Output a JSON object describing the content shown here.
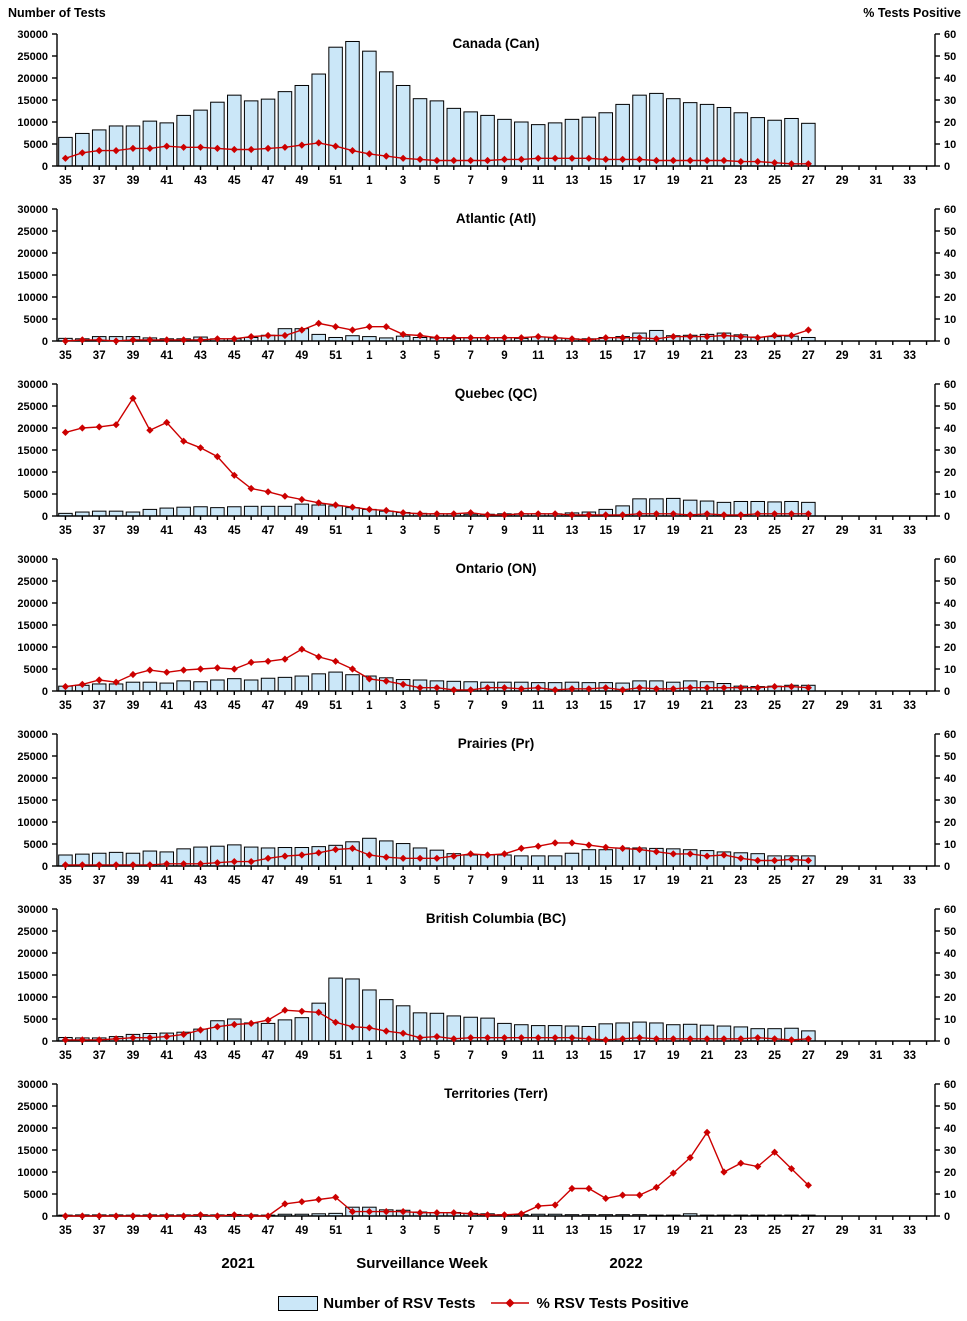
{
  "header": {
    "left_label": "Number of Tests",
    "right_label": "% Tests Positive"
  },
  "footer": {
    "year_left": "2021",
    "axis_title": "Surveillance Week",
    "year_right": "2022"
  },
  "legend": {
    "bars_label": "Number of RSV Tests",
    "line_label": "% RSV Tests Positive"
  },
  "colors": {
    "bar_fill": "#CBE7F8",
    "bar_stroke": "#000000",
    "line": "#CC0000",
    "axis": "#000000"
  },
  "axes": {
    "week_slots": [
      "35",
      "36",
      "37",
      "38",
      "39",
      "40",
      "41",
      "42",
      "43",
      "44",
      "45",
      "46",
      "47",
      "48",
      "49",
      "50",
      "51",
      "52",
      "1",
      "2",
      "3",
      "4",
      "5",
      "6",
      "7",
      "8",
      "9",
      "10",
      "11",
      "12",
      "13",
      "14",
      "15",
      "16",
      "17",
      "18",
      "19",
      "20",
      "21",
      "22",
      "23",
      "24",
      "25",
      "26",
      "27",
      "28",
      "29",
      "30",
      "31",
      "32",
      "33",
      "34"
    ],
    "x_tick_labels": [
      "35",
      "37",
      "39",
      "41",
      "43",
      "45",
      "47",
      "49",
      "51",
      "1",
      "3",
      "5",
      "7",
      "9",
      "11",
      "13",
      "15",
      "17",
      "19",
      "21",
      "23",
      "25",
      "27",
      "29",
      "31",
      "33"
    ],
    "left_ticks": [
      0,
      5000,
      10000,
      15000,
      20000,
      25000,
      30000
    ],
    "right_ticks": [
      0,
      10,
      20,
      30,
      40,
      50,
      60
    ],
    "left_max": 30000,
    "right_max": 60,
    "left_axis_title": "Number of Tests",
    "right_axis_title": "% Tests Positive",
    "x_axis_title": "Surveillance Week"
  },
  "chart_data": [
    {
      "type": "bar+line",
      "title": "Canada (Can)",
      "region_code": "Can",
      "series": [
        {
          "name": "Number of RSV Tests",
          "type": "bar",
          "axis": "left",
          "values": [
            6500,
            7400,
            8200,
            9100,
            9100,
            10200,
            9800,
            11500,
            12700,
            14500,
            16100,
            14800,
            15200,
            16900,
            18300,
            20900,
            27000,
            28300,
            26100,
            21400,
            18300,
            15300,
            14800,
            13100,
            12300,
            11500,
            10600,
            10000,
            9400,
            9800,
            10600,
            11100,
            12100,
            14000,
            16100,
            16500,
            15300,
            14400,
            14000,
            13300,
            12100,
            11000,
            10400,
            10800,
            9700
          ]
        },
        {
          "name": "% RSV Tests Positive",
          "type": "line",
          "axis": "right",
          "values": [
            3.5,
            6,
            7,
            7,
            8,
            8,
            9,
            8.5,
            8.5,
            8,
            7.5,
            7.5,
            8,
            8.5,
            9.5,
            10.5,
            9,
            7,
            5.5,
            4.5,
            3.5,
            3,
            2.5,
            2.5,
            2.5,
            2.5,
            3,
            3,
            3.5,
            3.5,
            3.5,
            3.5,
            3,
            3,
            3,
            2.5,
            2.5,
            2.5,
            2.5,
            2.5,
            2,
            2,
            1.5,
            1,
            1
          ]
        }
      ]
    },
    {
      "type": "bar+line",
      "title": "Atlantic (Atl)",
      "region_code": "Atl",
      "series": [
        {
          "name": "Number of RSV Tests",
          "type": "bar",
          "axis": "left",
          "values": [
            600,
            500,
            1000,
            1000,
            1000,
            700,
            500,
            500,
            900,
            500,
            500,
            800,
            1300,
            2800,
            2800,
            1500,
            800,
            1200,
            1000,
            700,
            1100,
            800,
            700,
            600,
            700,
            700,
            800,
            600,
            900,
            700,
            500,
            500,
            800,
            1000,
            1800,
            2400,
            1200,
            1300,
            1500,
            1800,
            1400,
            900,
            1000,
            1100,
            800
          ]
        },
        {
          "name": "% RSV Tests Positive",
          "type": "line",
          "axis": "right",
          "values": [
            0,
            0.5,
            0.5,
            0,
            0.5,
            0.5,
            0.5,
            0.5,
            0.5,
            1,
            1,
            2,
            2.5,
            2.5,
            5,
            8,
            6.5,
            5,
            6.5,
            6.5,
            3,
            2.5,
            1.5,
            1.5,
            1.5,
            1.5,
            1.5,
            1.5,
            2,
            1.5,
            1,
            0.5,
            1.5,
            1.5,
            1.5,
            1,
            2,
            2,
            2,
            2.5,
            2,
            1.5,
            2.5,
            2.5,
            5
          ]
        }
      ]
    },
    {
      "type": "bar+line",
      "title": "Quebec (QC)",
      "region_code": "QC",
      "series": [
        {
          "name": "Number of RSV Tests",
          "type": "bar",
          "axis": "left",
          "values": [
            600,
            900,
            1100,
            1100,
            900,
            1500,
            1800,
            2000,
            2100,
            1900,
            2100,
            2200,
            2200,
            2200,
            2700,
            2500,
            2300,
            1900,
            1500,
            1100,
            800,
            600,
            500,
            500,
            400,
            400,
            500,
            500,
            500,
            500,
            700,
            900,
            1500,
            2300,
            3900,
            3900,
            4000,
            3600,
            3400,
            3100,
            3300,
            3300,
            3200,
            3300,
            3100
          ]
        },
        {
          "name": "% RSV Tests Positive",
          "type": "line",
          "axis": "right",
          "values": [
            38,
            40,
            40.5,
            41.5,
            53.5,
            39,
            42.5,
            34,
            31,
            27,
            18.5,
            12.5,
            11,
            9,
            7.5,
            6,
            5,
            4,
            3,
            2.5,
            1.5,
            1,
            1,
            1,
            1.5,
            0.5,
            0.5,
            1,
            1,
            1,
            0.5,
            0.5,
            0.5,
            0.5,
            1,
            1,
            1,
            0.5,
            1,
            0.5,
            0.5,
            1,
            1,
            1,
            1
          ]
        }
      ]
    },
    {
      "type": "bar+line",
      "title": "Ontario (ON)",
      "region_code": "ON",
      "series": [
        {
          "name": "Number of RSV Tests",
          "type": "bar",
          "axis": "left",
          "values": [
            1100,
            1300,
            1600,
            1600,
            2000,
            2000,
            1800,
            2300,
            2100,
            2500,
            2800,
            2500,
            2900,
            3100,
            3400,
            3900,
            4300,
            3700,
            3400,
            3000,
            2600,
            2500,
            2300,
            2200,
            2100,
            2000,
            2000,
            2000,
            1900,
            1900,
            2000,
            1900,
            1900,
            1800,
            2300,
            2300,
            2000,
            2300,
            2100,
            1700,
            1100,
            1000,
            1100,
            1300,
            1300
          ]
        },
        {
          "name": "% RSV Tests Positive",
          "type": "line",
          "axis": "right",
          "values": [
            2,
            3,
            5,
            4,
            7.5,
            9.5,
            8.5,
            9.5,
            10,
            10.5,
            10,
            13,
            13.5,
            14.5,
            19,
            15.5,
            13.5,
            10,
            5.5,
            4.5,
            3,
            1.5,
            1.5,
            0.5,
            0.5,
            1.5,
            1.5,
            1,
            1.5,
            0.5,
            1,
            1,
            1.5,
            0.5,
            1.5,
            1,
            1,
            1.5,
            1.5,
            1.5,
            1.5,
            1.5,
            2,
            2,
            1.5
          ]
        }
      ]
    },
    {
      "type": "bar+line",
      "title": "Prairies (Pr)",
      "region_code": "Pr",
      "series": [
        {
          "name": "Number of RSV Tests",
          "type": "bar",
          "axis": "left",
          "values": [
            2500,
            2700,
            2900,
            3100,
            2900,
            3400,
            3200,
            3900,
            4300,
            4500,
            4800,
            4300,
            4100,
            4200,
            4200,
            4400,
            4700,
            5500,
            6300,
            5700,
            5100,
            4100,
            3600,
            2800,
            2500,
            2500,
            2500,
            2300,
            2300,
            2300,
            2900,
            3700,
            3700,
            4100,
            4100,
            4000,
            3900,
            3700,
            3500,
            3200,
            3000,
            2800,
            2300,
            2300,
            2300
          ]
        },
        {
          "name": "% RSV Tests Positive",
          "type": "line",
          "axis": "right",
          "values": [
            0.5,
            0.5,
            0.5,
            0.5,
            0.5,
            0.5,
            1,
            1,
            1,
            1.5,
            2,
            2,
            3.5,
            4.5,
            5,
            6,
            7.5,
            8,
            5,
            4,
            3.5,
            3.5,
            3.5,
            4.5,
            5.5,
            5,
            5.5,
            8,
            9,
            10.5,
            10.5,
            9.5,
            8.5,
            8,
            7.5,
            6.5,
            5.5,
            5.5,
            4.5,
            5,
            3.5,
            2.5,
            2.5,
            3,
            2.5
          ]
        }
      ]
    },
    {
      "type": "bar+line",
      "title": "British Columbia (BC)",
      "region_code": "BC",
      "series": [
        {
          "name": "Number of RSV Tests",
          "type": "bar",
          "axis": "left",
          "values": [
            800,
            700,
            700,
            1000,
            1500,
            1700,
            1800,
            2000,
            2700,
            4600,
            5000,
            4100,
            4000,
            4800,
            5300,
            8600,
            14300,
            14100,
            11600,
            9400,
            8000,
            6400,
            6300,
            5700,
            5400,
            5200,
            4000,
            3700,
            3500,
            3500,
            3400,
            3300,
            3900,
            4100,
            4300,
            4100,
            3700,
            3800,
            3600,
            3400,
            3200,
            2800,
            2800,
            2900,
            2300
          ]
        },
        {
          "name": "% RSV Tests Positive",
          "type": "line",
          "axis": "right",
          "values": [
            0.5,
            0.5,
            0.5,
            1,
            1.5,
            1.5,
            2,
            3,
            5,
            6.5,
            7.5,
            8,
            9.5,
            14,
            13.5,
            13,
            8.5,
            6.5,
            6,
            4.5,
            3.5,
            1.5,
            2,
            1,
            1.5,
            1.5,
            1.5,
            1.5,
            1.5,
            1.5,
            1.5,
            1,
            0.5,
            1,
            1.5,
            1,
            1,
            1,
            1,
            1,
            1,
            1.5,
            1,
            0.5,
            1
          ]
        }
      ]
    },
    {
      "type": "bar+line",
      "title": "Territories (Terr)",
      "region_code": "Terr",
      "series": [
        {
          "name": "Number of RSV Tests",
          "type": "bar",
          "axis": "left",
          "values": [
            200,
            250,
            250,
            250,
            200,
            250,
            250,
            250,
            300,
            250,
            350,
            250,
            200,
            400,
            400,
            500,
            600,
            2000,
            2000,
            1400,
            1300,
            900,
            800,
            800,
            600,
            500,
            300,
            300,
            400,
            400,
            300,
            300,
            300,
            300,
            300,
            200,
            200,
            500,
            200,
            200,
            200,
            200,
            200,
            200,
            200
          ]
        },
        {
          "name": "% RSV Tests Positive",
          "type": "line",
          "axis": "right",
          "values": [
            0,
            0,
            0,
            0,
            0,
            0,
            0,
            0,
            0.5,
            0,
            0.5,
            0,
            0,
            5.5,
            6.5,
            7.5,
            8.5,
            2,
            2,
            2,
            2,
            1.5,
            1.5,
            1.5,
            1,
            0.5,
            0.5,
            1,
            4.5,
            5,
            12.5,
            12.5,
            8,
            9.5,
            9.5,
            13,
            19.5,
            26.5,
            38,
            20,
            24,
            22.5,
            29,
            21.5,
            14
          ]
        }
      ]
    }
  ]
}
